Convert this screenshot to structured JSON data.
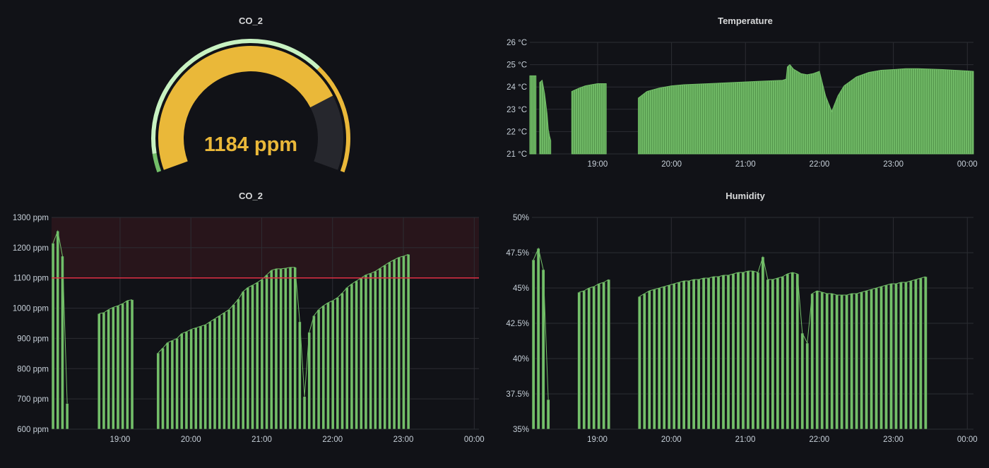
{
  "panels": {
    "gauge": {
      "title": "CO_2",
      "value_text": "1184 ppm"
    },
    "temperature": {
      "title": "Temperature"
    },
    "co2": {
      "title": "CO_2"
    },
    "humidity": {
      "title": "Humidity"
    }
  },
  "colors": {
    "bar": "#73bf69",
    "bar_stroke": "#5aa64b",
    "gauge_fill": "#eab839",
    "threshold": "#e02f44"
  },
  "chart_data": [
    {
      "id": "gauge",
      "type": "gauge",
      "title": "CO_2",
      "value": 1184,
      "unit": "ppm",
      "min": 400,
      "max": 1400,
      "thresholds": [
        {
          "from": 400,
          "to": 450,
          "color": "#73bf69"
        },
        {
          "from": 450,
          "to": 1100,
          "color": "#c8f2c2"
        },
        {
          "from": 1100,
          "to": 1400,
          "color": "#eab839"
        }
      ]
    },
    {
      "id": "temperature",
      "type": "area",
      "title": "Temperature",
      "xlim": [
        "18:05",
        "00:05"
      ],
      "ylim": [
        21,
        26
      ],
      "x_ticks": [
        "19:00",
        "20:00",
        "21:00",
        "22:00",
        "23:00",
        "00:00"
      ],
      "y_ticks": [
        "21 °C",
        "22 °C",
        "23 °C",
        "24 °C",
        "25 °C",
        "26 °C"
      ],
      "segments": [
        {
          "x": [
            "18:05",
            "18:07",
            "18:10"
          ],
          "y": [
            24.5,
            24.5,
            24.5
          ]
        },
        {
          "x": [
            "18:13",
            "18:15",
            "18:17",
            "18:19",
            "18:20",
            "18:21",
            "18:22"
          ],
          "y": [
            24.2,
            24.3,
            23.7,
            22.8,
            22.1,
            21.8,
            21.6
          ]
        },
        {
          "x": [
            "18:39",
            "18:45",
            "18:50",
            "18:55",
            "19:00",
            "19:05",
            "19:07"
          ],
          "y": [
            23.8,
            23.95,
            24.05,
            24.1,
            24.15,
            24.15,
            24.15
          ]
        },
        {
          "x": [
            "19:33",
            "19:40",
            "19:50",
            "20:00",
            "20:10",
            "20:30",
            "20:50",
            "21:10",
            "21:30",
            "21:33"
          ],
          "y": [
            23.5,
            23.8,
            23.95,
            24.05,
            24.1,
            24.15,
            24.2,
            24.25,
            24.3,
            24.35
          ]
        },
        {
          "x": [
            "21:33",
            "21:34",
            "21:36",
            "21:39",
            "21:45",
            "21:50",
            "21:55",
            "22:00",
            "22:05",
            "22:10",
            "22:15",
            "22:20",
            "22:30",
            "22:40",
            "22:50",
            "23:00",
            "23:10",
            "23:20",
            "23:30",
            "23:40",
            "23:50",
            "00:00",
            "00:05"
          ],
          "y": [
            24.35,
            24.9,
            25.0,
            24.8,
            24.6,
            24.55,
            24.6,
            24.7,
            23.6,
            22.9,
            23.6,
            24.05,
            24.45,
            24.65,
            24.75,
            24.78,
            24.82,
            24.82,
            24.8,
            24.78,
            24.75,
            24.72,
            24.7
          ]
        }
      ]
    },
    {
      "id": "co2",
      "type": "bar",
      "title": "CO_2",
      "xlim": [
        "18:02",
        "00:04"
      ],
      "ylim": [
        600,
        1300
      ],
      "x_ticks": [
        "19:00",
        "20:00",
        "21:00",
        "22:00",
        "23:00",
        "00:00"
      ],
      "y_ticks": [
        "600 ppm",
        "700 ppm",
        "800 ppm",
        "900 ppm",
        "1000 ppm",
        "1100 ppm",
        "1200 ppm",
        "1300 ppm"
      ],
      "threshold": 1100,
      "segments": [
        {
          "start": "18:02",
          "step_min": 4,
          "values": [
            1215,
            1255,
            1172,
            685
          ]
        },
        {
          "start": "18:41",
          "step_min": 4,
          "values": [
            982,
            985,
            995,
            1003,
            1008,
            1015,
            1025,
            1028
          ]
        },
        {
          "start": "19:31",
          "step_min": 4,
          "values": [
            852,
            868,
            886,
            893,
            900,
            916,
            922,
            930,
            935,
            940,
            945,
            955,
            965,
            975,
            985,
            995,
            1012,
            1030,
            1055,
            1068,
            1076,
            1085,
            1095,
            1110,
            1125,
            1130,
            1130,
            1132,
            1135,
            1135,
            955,
            708,
            920,
            975,
            995,
            1008,
            1018,
            1025,
            1035,
            1050,
            1068,
            1080,
            1090,
            1100,
            1110,
            1115,
            1122,
            1132,
            1142,
            1152,
            1160,
            1168,
            1172,
            1178
          ]
        }
      ]
    },
    {
      "id": "humidity",
      "type": "bar",
      "title": "Humidity",
      "xlim": [
        "18:07",
        "00:05"
      ],
      "ylim": [
        35,
        50
      ],
      "x_ticks": [
        "19:00",
        "20:00",
        "21:00",
        "22:00",
        "23:00",
        "00:00"
      ],
      "y_ticks": [
        "35%",
        "37.5%",
        "40%",
        "42.5%",
        "45%",
        "47.5%",
        "50%"
      ],
      "segments": [
        {
          "start": "18:07",
          "step_min": 4,
          "values": [
            47.0,
            47.8,
            46.3,
            37.1
          ]
        },
        {
          "start": "18:44",
          "step_min": 4,
          "values": [
            44.7,
            44.8,
            45.0,
            45.1,
            45.3,
            45.4,
            45.6
          ]
        },
        {
          "start": "19:33",
          "step_min": 4,
          "values": [
            44.4,
            44.6,
            44.8,
            44.9,
            45.0,
            45.1,
            45.2,
            45.3,
            45.4,
            45.5,
            45.5,
            45.6,
            45.6,
            45.7,
            45.7,
            45.8,
            45.8,
            45.9,
            45.9,
            46.0,
            46.1,
            46.1,
            46.2,
            46.2,
            46.1,
            47.2,
            45.6,
            45.6,
            45.7,
            45.8,
            46.0,
            46.1,
            46.0,
            41.8,
            41.1,
            44.6,
            44.8,
            44.7,
            44.6,
            44.6,
            44.5,
            44.5,
            44.5,
            44.6,
            44.6,
            44.7,
            44.8,
            44.9,
            45.0,
            45.1,
            45.2,
            45.3,
            45.3,
            45.4,
            45.4,
            45.5,
            45.6,
            45.7,
            45.8
          ]
        }
      ]
    }
  ]
}
